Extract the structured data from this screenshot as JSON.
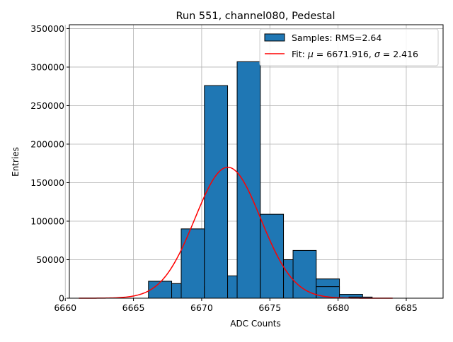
{
  "chart_data": {
    "type": "bar",
    "title": "Run 551, channel080, Pedestal",
    "xlabel": "ADC Counts",
    "ylabel": "Entries",
    "xlim": [
      6660.3,
      6687.7
    ],
    "ylim": [
      0,
      355000
    ],
    "grid": true,
    "legend_position": "top-right",
    "x_ticks": [
      6660,
      6665,
      6670,
      6675,
      6680,
      6685
    ],
    "y_ticks": [
      0,
      50000,
      100000,
      150000,
      200000,
      250000,
      300000,
      350000
    ],
    "histogram": {
      "name": "Samples: RMS=2.64",
      "color": "#1f77b4",
      "bin_width": 1.7,
      "bins": [
        {
          "left": 6666.1,
          "value": 1000
        },
        {
          "left": 6666.1,
          "value": 22000
        },
        {
          "left": 6667.8,
          "value": 19000
        },
        {
          "left": 6668.5,
          "value": 90000
        },
        {
          "left": 6670.2,
          "value": 15000
        },
        {
          "left": 6670.2,
          "value": 276000
        },
        {
          "left": 6671.9,
          "value": 29000
        },
        {
          "left": 6672.6,
          "value": 307000
        },
        {
          "left": 6674.3,
          "value": 38000
        },
        {
          "left": 6674.3,
          "value": 109000
        },
        {
          "left": 6676.0,
          "value": 50000
        },
        {
          "left": 6676.7,
          "value": 62000
        },
        {
          "left": 6678.4,
          "value": 25000
        },
        {
          "left": 6678.4,
          "value": 15000
        },
        {
          "left": 6680.1,
          "value": 5000
        },
        {
          "left": 6680.8,
          "value": 1500
        }
      ]
    },
    "fit": {
      "name": "Fit: μ = 6671.916, σ = 2.416",
      "label_prefix": "Fit:",
      "mu_symbol": "μ",
      "mu_text": "= 6671.916,",
      "sigma_symbol": "σ",
      "sigma_text": "= 2.416",
      "color": "#ff0000",
      "mu": 6671.916,
      "sigma": 2.416,
      "amplitude": 170000,
      "x_range": [
        6661.0,
        6684.0
      ]
    }
  }
}
